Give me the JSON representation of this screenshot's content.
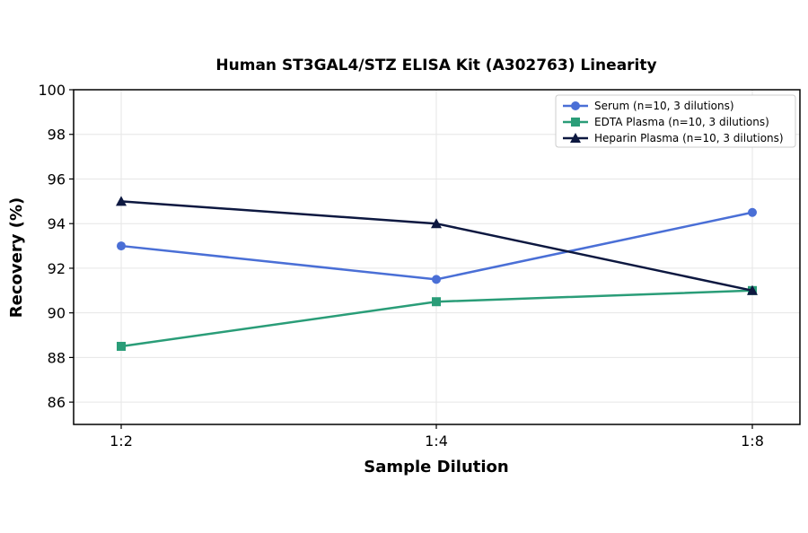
{
  "chart_data": {
    "type": "line",
    "title": "Human ST3GAL4/STZ ELISA Kit (A302763) Linearity",
    "xlabel": "Sample Dilution",
    "ylabel": "Recovery (%)",
    "categories": [
      "1:2",
      "1:4",
      "1:8"
    ],
    "ylim": [
      85,
      100
    ],
    "yticks": [
      86,
      88,
      90,
      92,
      94,
      96,
      98,
      100
    ],
    "grid": true,
    "legend_position": "top-right",
    "series": [
      {
        "name": "Serum (n=10, 3 dilutions)",
        "values": [
          93.0,
          91.5,
          94.5
        ],
        "color": "#4a6fd6",
        "marker": "circle"
      },
      {
        "name": "EDTA Plasma (n=10, 3 dilutions)",
        "values": [
          88.5,
          90.5,
          91.0
        ],
        "color": "#2a9d78",
        "marker": "square"
      },
      {
        "name": "Heparin Plasma (n=10, 3 dilutions)",
        "values": [
          95.0,
          94.0,
          91.0
        ],
        "color": "#0d1840",
        "marker": "triangle"
      }
    ]
  }
}
